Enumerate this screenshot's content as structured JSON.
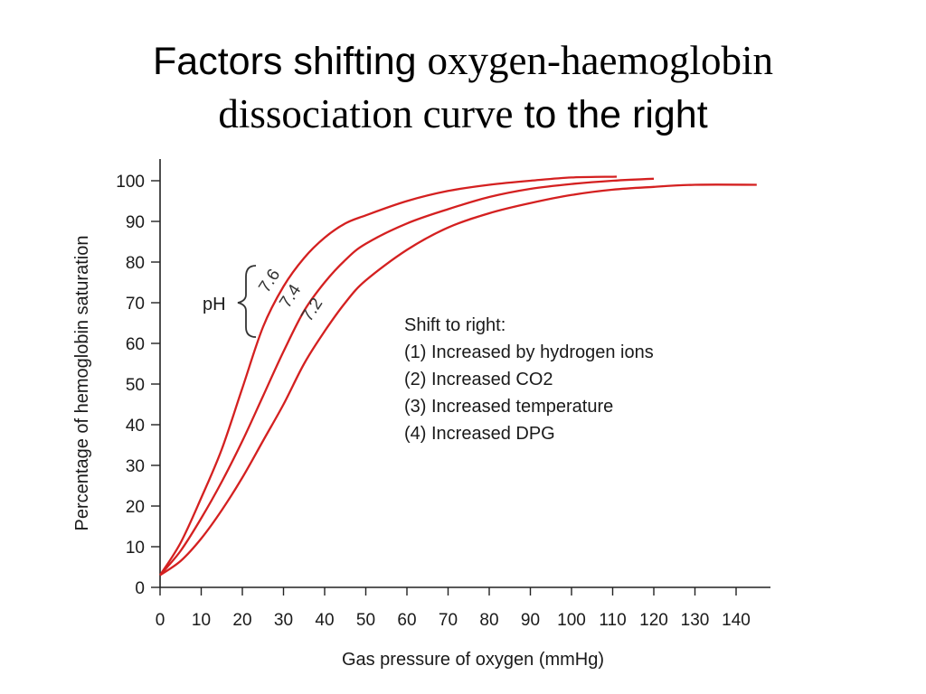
{
  "slide": {
    "title_part1": "Factors shifting ",
    "title_part2": "oxygen-haemoglobin",
    "title_part3": "dissociation curve",
    "title_part4": " to the right"
  },
  "chart_data": {
    "type": "line",
    "xlabel": "Gas pressure of oxygen (mmHg)",
    "ylabel": "Percentage of hemoglobin saturation",
    "xlim": [
      0,
      145
    ],
    "ylim": [
      0,
      100
    ],
    "xticks": [
      0,
      10,
      20,
      30,
      40,
      50,
      60,
      70,
      80,
      90,
      100,
      110,
      120,
      130,
      140
    ],
    "yticks": [
      0,
      10,
      20,
      30,
      40,
      50,
      60,
      70,
      80,
      90,
      100
    ],
    "grid": false,
    "line_color": "#d42020",
    "series": [
      {
        "name": "7.6",
        "x": [
          0,
          5,
          10,
          15,
          20,
          25,
          30,
          35,
          40,
          45,
          50,
          60,
          70,
          80,
          90,
          100,
          111
        ],
        "values": [
          3,
          11,
          22,
          34,
          49,
          64,
          74,
          81,
          86,
          89.5,
          91.5,
          95,
          97.5,
          99,
          100,
          100.8,
          101
        ]
      },
      {
        "name": "7.4",
        "x": [
          0,
          5,
          10,
          15,
          20,
          25,
          30,
          35,
          40,
          45,
          50,
          60,
          70,
          80,
          90,
          100,
          110,
          120
        ],
        "values": [
          3,
          9,
          17,
          26,
          36,
          47,
          58,
          68,
          75,
          80.5,
          84.5,
          89.5,
          93,
          96,
          98,
          99.2,
          100,
          100.5
        ]
      },
      {
        "name": "7.2",
        "x": [
          0,
          5,
          10,
          15,
          20,
          25,
          30,
          35,
          40,
          45,
          50,
          60,
          70,
          80,
          90,
          100,
          110,
          120,
          130,
          145
        ],
        "values": [
          3,
          6.5,
          12,
          19,
          27,
          36,
          45,
          55,
          63,
          70,
          75.5,
          83,
          88.5,
          92,
          94.5,
          96.5,
          97.8,
          98.5,
          99,
          99
        ]
      }
    ],
    "annotations": {
      "group_label": "pH",
      "shift_lines": [
        "Shift to right:",
        "(1) Increased by hydrogen ions",
        "(2) Increased CO2",
        "(3) Increased temperature",
        "(4) Increased DPG"
      ]
    }
  }
}
